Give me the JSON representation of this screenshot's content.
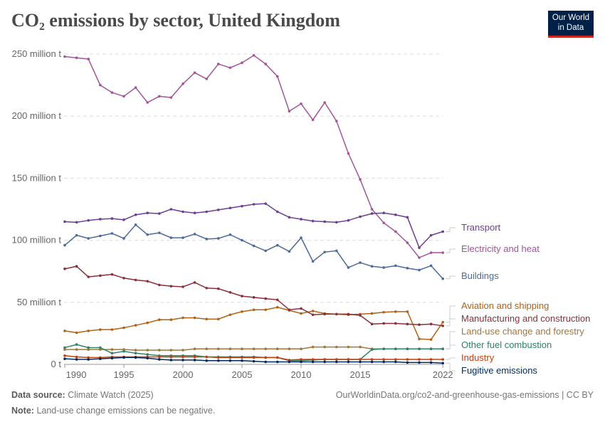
{
  "title": "CO₂ emissions by sector, United Kingdom",
  "logo": "Our World in Data",
  "footer": {
    "source_label": "Data source:",
    "source": "Climate Watch (2025)",
    "url": "OurWorldinData.org/co2-and-greenhouse-gas-emissions | CC BY",
    "note_label": "Note:",
    "note": "Land-use change emissions can be negative."
  },
  "chart_data": {
    "type": "line",
    "title": "CO₂ emissions by sector, United Kingdom",
    "x": [
      1990,
      1991,
      1992,
      1993,
      1994,
      1995,
      1996,
      1997,
      1998,
      1999,
      2000,
      2001,
      2002,
      2003,
      2004,
      2005,
      2006,
      2007,
      2008,
      2009,
      2010,
      2011,
      2012,
      2013,
      2014,
      2015,
      2016,
      2017,
      2018,
      2019,
      2020,
      2021,
      2022
    ],
    "xticks": [
      "1990",
      "1995",
      "2000",
      "2005",
      "2010",
      "2015",
      "2022"
    ],
    "ylim": [
      0,
      250000000
    ],
    "yticks": [
      "0 t",
      "50 million t",
      "100 million t",
      "150 million t",
      "200 million t",
      "250 million t"
    ],
    "grid": true,
    "legend": "right-inline",
    "unit": "million t",
    "series": [
      {
        "name": "Electricity and heat",
        "color": "#a2559c",
        "values": [
          248,
          247,
          246,
          225,
          219,
          216,
          223,
          211,
          216,
          215,
          226,
          235,
          230,
          242,
          239,
          243,
          249,
          242,
          232,
          204,
          210,
          197,
          211,
          196,
          170,
          149,
          125,
          114,
          107,
          98,
          86,
          90,
          90
        ]
      },
      {
        "name": "Transport",
        "color": "#6d3e91",
        "values": [
          115,
          114.5,
          116,
          117,
          117.5,
          116.5,
          120.5,
          122,
          121.5,
          125,
          123,
          122,
          123,
          124.5,
          126,
          127.5,
          129,
          129.5,
          123,
          118.5,
          117,
          115.5,
          115,
          114.5,
          116,
          119,
          121.5,
          122,
          120.5,
          118.5,
          94,
          104,
          107
        ]
      },
      {
        "name": "Buildings",
        "color": "#4c6a9c",
        "values": [
          96,
          104,
          101.5,
          103.5,
          105.5,
          101.5,
          112.5,
          104.5,
          106,
          102,
          102,
          105,
          101,
          101.5,
          104.5,
          100,
          95.5,
          91.5,
          96,
          91,
          102,
          83,
          90.5,
          91.5,
          78,
          82,
          79,
          78,
          79.5,
          77.5,
          76,
          79.5,
          69
        ]
      },
      {
        "name": "Aviation and shipping",
        "color": "#b16214",
        "values": [
          27,
          25.5,
          27,
          28,
          28,
          29.5,
          31.5,
          33.5,
          36,
          36,
          37.5,
          37.5,
          36.5,
          36.5,
          40,
          42.5,
          44,
          44,
          46,
          43.5,
          41,
          43,
          41,
          40.5,
          40,
          40.5,
          41,
          42,
          42.5,
          42.5,
          20.5,
          20,
          34
        ]
      },
      {
        "name": "Manufacturing and construction",
        "color": "#883039",
        "values": [
          77,
          79,
          70.5,
          71.5,
          72.5,
          69.5,
          68,
          67,
          64,
          63,
          62.5,
          66,
          61.5,
          61,
          58,
          55,
          54,
          53,
          52,
          44,
          45,
          40,
          40.5,
          40.5,
          40.5,
          39.5,
          32.5,
          33,
          33,
          32.5,
          32,
          32.5,
          31
        ]
      },
      {
        "name": "Land-use change and forestry",
        "color": "#a2763c",
        "values": [
          12,
          12,
          12,
          12,
          12,
          12,
          11.5,
          11.5,
          11.5,
          11.5,
          11.5,
          12.5,
          12.5,
          12.5,
          12.5,
          12.5,
          12.5,
          12.5,
          12.5,
          12.5,
          12.5,
          14,
          14,
          14,
          14,
          14,
          12.5,
          12.5,
          12.5,
          12.5,
          12.5,
          12.5,
          12.5
        ]
      },
      {
        "name": "Other fuel combustion",
        "color": "#2c8465",
        "values": [
          13.5,
          16,
          13.5,
          13.5,
          9,
          10.5,
          9,
          8,
          7,
          7,
          7,
          7,
          6,
          6,
          6,
          6,
          6,
          5.5,
          5.5,
          3,
          3,
          3.5,
          4,
          4,
          4,
          4,
          12,
          12.5,
          12.5,
          12.5,
          12.5,
          12.5,
          12.5
        ]
      },
      {
        "name": "Industry",
        "color": "#c43f0c",
        "values": [
          7,
          6,
          5.5,
          5.5,
          6,
          6,
          6,
          6,
          6,
          6,
          6,
          6,
          6,
          5.5,
          5.5,
          5.5,
          5.5,
          5.5,
          5.5,
          3.5,
          4,
          4,
          4,
          4,
          4,
          4,
          4,
          4,
          4,
          4,
          4,
          4,
          4
        ]
      },
      {
        "name": "Fugitive emissions",
        "color": "#00295b",
        "values": [
          4.5,
          4,
          4,
          4.5,
          5,
          5.5,
          5.5,
          5,
          4,
          3.5,
          3.5,
          3.5,
          3,
          3,
          3,
          3,
          2.5,
          2,
          2,
          2,
          2,
          2,
          2,
          2,
          2,
          2,
          2,
          2,
          2,
          1.5,
          1.5,
          1.5,
          1
        ]
      }
    ]
  }
}
